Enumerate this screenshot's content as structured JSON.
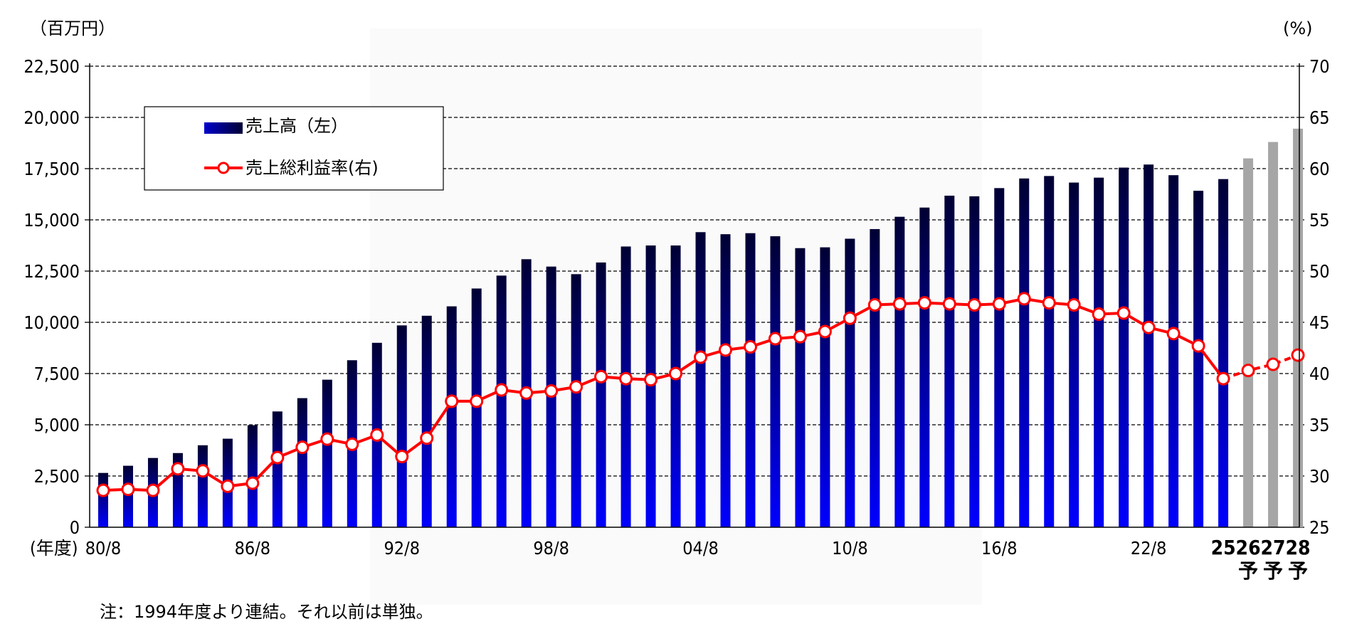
{
  "chart_data": {
    "type": "bar+line",
    "left_unit": "（百万円）",
    "right_unit": "(%)",
    "x_axis_prefix": "(年度)",
    "note": "注：1994年度より連結。それ以前は単独。",
    "left_axis": {
      "min": 0,
      "max": 22500,
      "ticks": [
        "0",
        "2,500",
        "5,000",
        "7,500",
        "10,000",
        "12,500",
        "15,000",
        "17,500",
        "20,000",
        "22,500"
      ]
    },
    "right_axis": {
      "min": 25,
      "max": 70,
      "ticks": [
        "25",
        "30",
        "35",
        "40",
        "45",
        "50",
        "55",
        "60",
        "65",
        "70"
      ]
    },
    "grid": true,
    "legend_position": "top-left",
    "x_labels": [
      {
        "index": 0,
        "text": "80/8"
      },
      {
        "index": 6,
        "text": "86/8"
      },
      {
        "index": 12,
        "text": "92/8"
      },
      {
        "index": 18,
        "text": "98/8"
      },
      {
        "index": 24,
        "text": "04/8"
      },
      {
        "index": 30,
        "text": "10/8"
      },
      {
        "index": 36,
        "text": "16/8"
      },
      {
        "index": 42,
        "text": "22/8"
      },
      {
        "index": 45,
        "text": "25",
        "bold": true
      },
      {
        "index": 46,
        "text": "26",
        "sub": "予",
        "bold": true
      },
      {
        "index": 47,
        "text": "27",
        "sub": "予",
        "bold": true
      },
      {
        "index": 48,
        "text": "28",
        "sub": "予",
        "bold": true
      }
    ],
    "series": [
      {
        "name": "売上高（左）",
        "type": "bar",
        "axis": "left",
        "values": [
          2650,
          3000,
          3380,
          3620,
          4000,
          4320,
          4980,
          5650,
          6300,
          7200,
          8150,
          9000,
          9850,
          10320,
          10780,
          11650,
          12280,
          13080,
          12720,
          12350,
          12920,
          13700,
          13750,
          13750,
          14400,
          14300,
          14350,
          14200,
          13620,
          13660,
          14080,
          14550,
          15150,
          15600,
          16180,
          16150,
          16550,
          17020,
          17140,
          16820,
          17060,
          17550,
          17700,
          17180,
          16420,
          16990,
          18000,
          18800,
          19450
        ],
        "forecast_from_index": 46
      },
      {
        "name": "売上総利益率(右)",
        "type": "line",
        "axis": "right",
        "values": [
          28.6,
          28.7,
          28.6,
          30.7,
          30.5,
          29.0,
          29.3,
          31.8,
          32.8,
          33.6,
          33.1,
          34.0,
          31.9,
          33.7,
          37.3,
          37.3,
          38.4,
          38.1,
          38.3,
          38.7,
          39.7,
          39.5,
          39.4,
          40.0,
          41.6,
          42.3,
          42.6,
          43.4,
          43.6,
          44.1,
          45.4,
          46.7,
          46.8,
          46.9,
          46.8,
          46.7,
          46.8,
          47.3,
          46.9,
          46.7,
          45.8,
          45.9,
          44.5,
          43.9,
          42.7,
          39.5,
          40.3,
          40.9,
          41.8
        ],
        "forecast_from_index": 46
      }
    ],
    "colors": {
      "bar_top": "#000033",
      "bar_bottom": "#0000ff",
      "bar_forecast": "#a6a6a6",
      "line": "#ff0000"
    }
  }
}
